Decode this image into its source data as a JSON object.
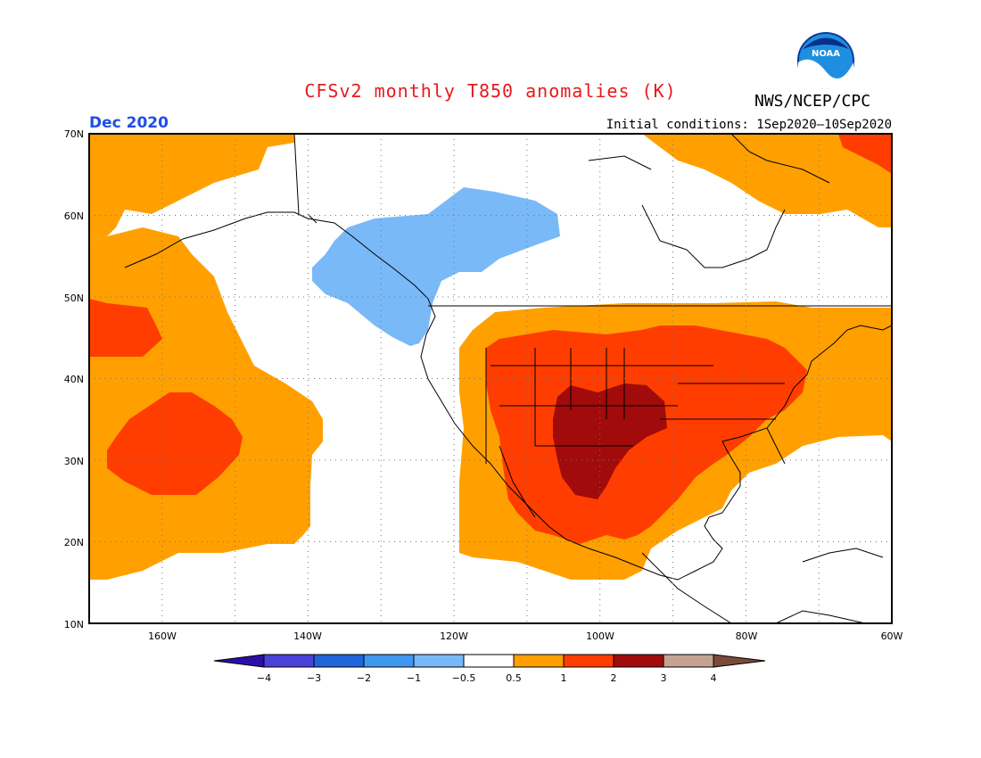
{
  "header": {
    "title": "CFSv2 monthly T850 anomalies (K)",
    "organization": "NWS/NCEP/CPC",
    "month": "Dec 2020",
    "initial_conditions": "Initial conditions: 1Sep2020–10Sep2020",
    "logo_text": "NOAA"
  },
  "colors": {
    "title": "#e8191c",
    "month": "#1d4fe6",
    "neg_4": "#2b0ea8",
    "neg_3": "#4a42d8",
    "neg_2": "#1f64d9",
    "neg_1": "#3f97f0",
    "neg_05": "#7ab9f7",
    "neutral": "#ffffff",
    "pos_05": "#ffa000",
    "pos_1": "#ff3d00",
    "pos_2": "#a10b0b",
    "pos_3": "#c4a393",
    "pos_4": "#7a4a38"
  },
  "map": {
    "lat_labels": [
      "70N",
      "60N",
      "50N",
      "40N",
      "30N",
      "20N",
      "10N"
    ],
    "lon_labels": [
      "160W",
      "140W",
      "120W",
      "100W",
      "80W",
      "60W"
    ],
    "lat_range": [
      10,
      70
    ],
    "lon_range": [
      -170,
      -60
    ]
  },
  "colorbar": {
    "labels": [
      "−4",
      "−3",
      "−2",
      "−1",
      "−0.5",
      "0.5",
      "1",
      "2",
      "3",
      "4"
    ]
  }
}
